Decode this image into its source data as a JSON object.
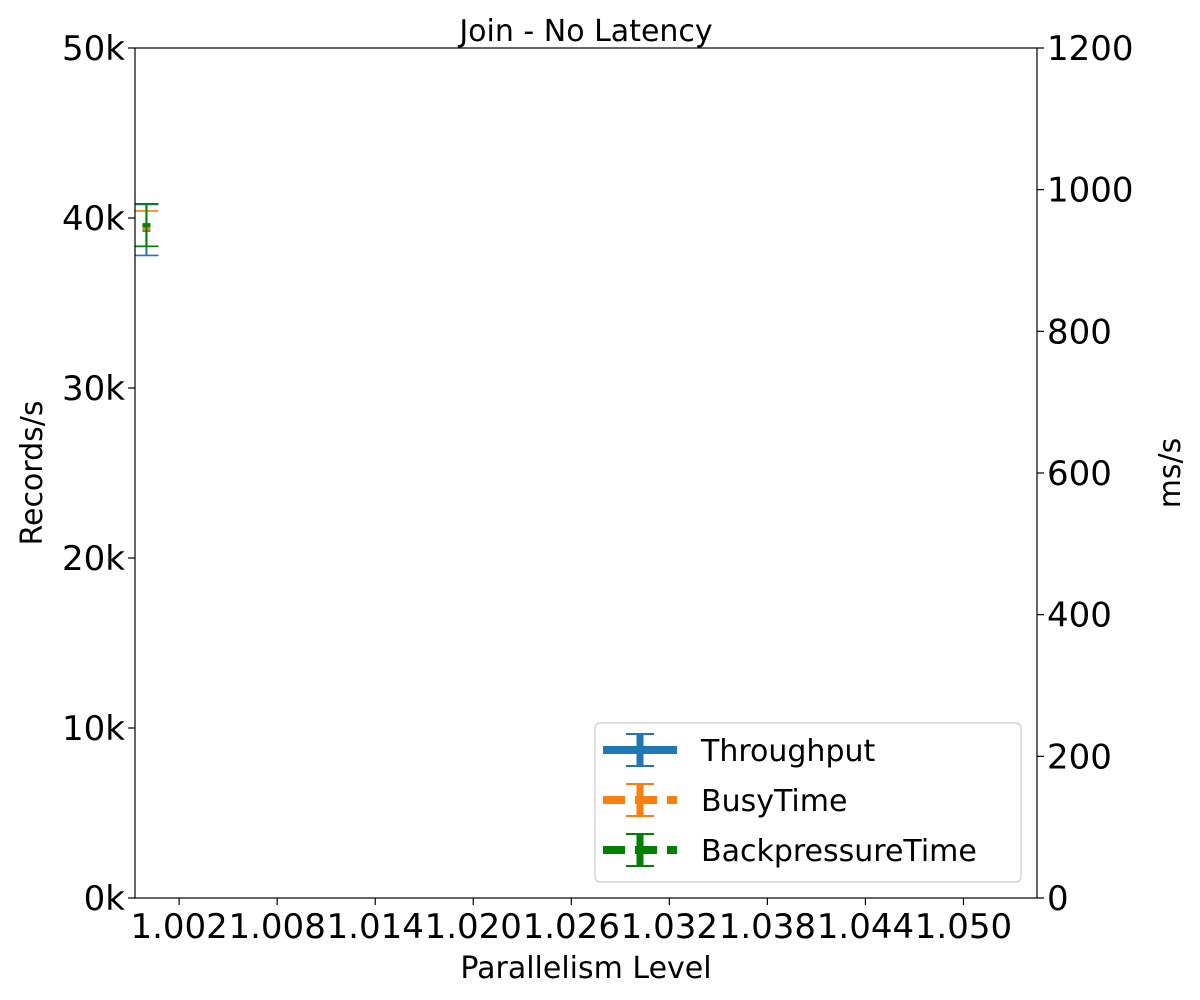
{
  "chart_data": {
    "type": "line",
    "title": "Join - No Latency",
    "xlabel": "Parallelism Level",
    "ylabel_left": "Records/s",
    "ylabel_right": "ms/s",
    "xlim": [
      0.9993,
      1.0545
    ],
    "x_ticks": [
      "1.002",
      "1.008",
      "1.014",
      "1.020",
      "1.026",
      "1.032",
      "1.038",
      "1.044",
      "1.050"
    ],
    "x_tick_values": [
      1.002,
      1.008,
      1.014,
      1.02,
      1.026,
      1.032,
      1.038,
      1.044,
      1.05
    ],
    "ylim_left": [
      0,
      50000
    ],
    "y_ticks_left": [
      "0k",
      "10k",
      "20k",
      "30k",
      "40k",
      "50k"
    ],
    "y_tick_values_left": [
      0,
      10000,
      20000,
      30000,
      40000,
      50000
    ],
    "ylim_right": [
      0,
      1200
    ],
    "y_ticks_right": [
      "0",
      "200",
      "400",
      "600",
      "800",
      "1000",
      "1200"
    ],
    "y_tick_values_right": [
      0,
      200,
      400,
      600,
      800,
      1000,
      1200
    ],
    "grid": false,
    "legend_position": "bottom-right",
    "series": [
      {
        "name": "Throughput",
        "axis": "left",
        "color": "#1f77b4",
        "dash": "solid",
        "points": [
          {
            "x": 1.0,
            "y": 39300,
            "err": 1500
          }
        ]
      },
      {
        "name": "BusyTime",
        "axis": "right",
        "color": "#ff7f0e",
        "dash": "dashed",
        "points": [
          {
            "x": 1.0,
            "y": 945,
            "err": 25
          }
        ]
      },
      {
        "name": "BackpressureTime",
        "axis": "right",
        "color": "#008000",
        "dash": "dashed",
        "points": [
          {
            "x": 1.0,
            "y": 950,
            "err": 30
          }
        ]
      }
    ]
  }
}
